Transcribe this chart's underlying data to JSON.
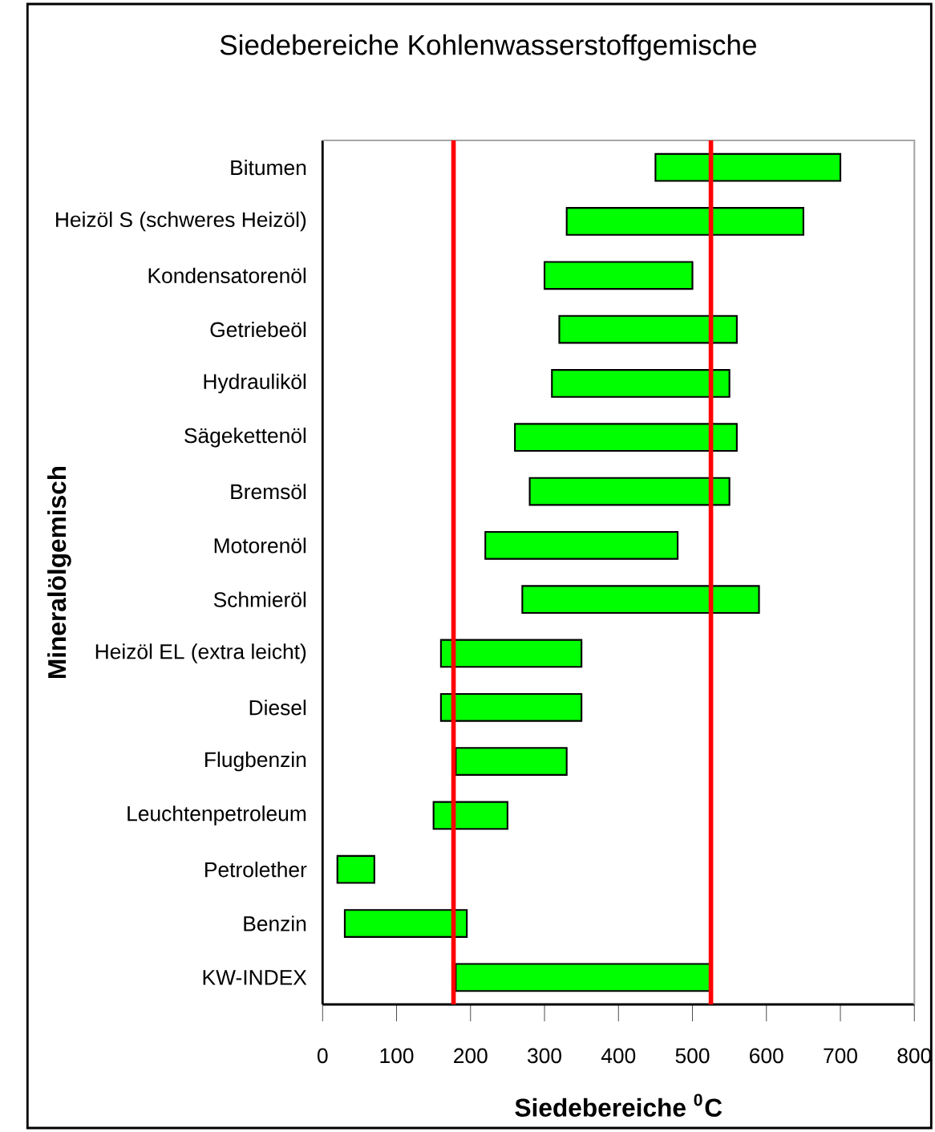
{
  "chart_data": {
    "type": "bar",
    "orientation": "horizontal",
    "title": "Siedebereiche Kohlenwasserstoffgemische",
    "xlabel": "Siedebereiche $^{0}$C",
    "ylabel": "Mineralölgemisch",
    "categories": [
      "Bitumen",
      "Heizöl S (schweres Heizöl)",
      "Kondensatorenöl",
      "Getriebeöl",
      "Hydrauliköl",
      "Sägekettenöl",
      "Bremsöl",
      "Motorenöl",
      "Schmieröl",
      "Heizöl EL (extra leicht)",
      "Diesel",
      "Flugbenzin",
      "Leuchtenpetroleum",
      "Petrolether",
      "Benzin",
      "KW-INDEX"
    ],
    "base": [
      450,
      330,
      300,
      320,
      310,
      260,
      280,
      220,
      270,
      160,
      160,
      180,
      150,
      20,
      30,
      180
    ],
    "values": [
      250,
      320,
      200,
      240,
      240,
      300,
      270,
      260,
      320,
      190,
      190,
      150,
      100,
      50,
      165,
      345
    ],
    "color": "#00ff00",
    "xlim": [
      0,
      800
    ],
    "xticks": [
      0,
      100,
      200,
      300,
      400,
      500,
      600,
      700,
      800
    ],
    "ref_lines": [
      {
        "axis": "x",
        "value": 177,
        "color": "#ff0000"
      },
      {
        "axis": "x",
        "value": 525,
        "color": "#ff0000"
      }
    ]
  }
}
